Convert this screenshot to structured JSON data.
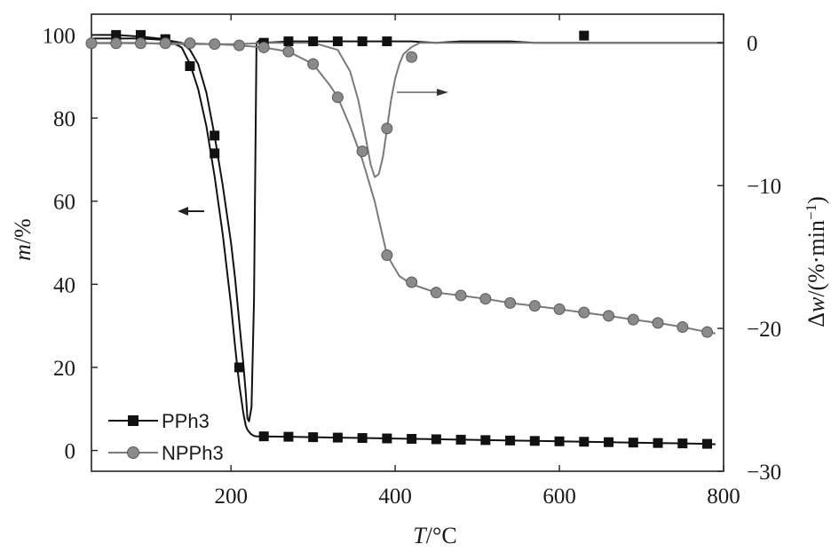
{
  "chart_data": {
    "type": "line",
    "x_axis": {
      "label": "T/°C",
      "range": [
        30,
        800
      ],
      "ticks": [
        200,
        400,
        600,
        800
      ]
    },
    "y_left": {
      "label": "m/%",
      "range": [
        -5,
        105
      ],
      "ticks": [
        0,
        20,
        40,
        60,
        80,
        100
      ]
    },
    "y_right": {
      "label": "Δw/(%·min⁻¹)",
      "range": [
        -30,
        2
      ],
      "ticks": [
        0,
        -10,
        -20,
        -30
      ]
    },
    "grid": false,
    "legend": {
      "placement": "bottom-left",
      "entries": [
        "PPh3",
        "NPPh3"
      ]
    },
    "colors": {
      "PPh3": "#111111",
      "NPPh3": "#7a7a7a",
      "NPPh3_marker": "#8a8a8a"
    },
    "annotations": [
      {
        "type": "arrow",
        "direction": "left",
        "refers_to_axis": "left"
      },
      {
        "type": "arrow",
        "direction": "right",
        "refers_to_axis": "right"
      }
    ],
    "series": [
      {
        "name": "PPh3",
        "axis": "left",
        "marker": "square",
        "x": [
          30,
          60,
          90,
          120,
          140,
          150,
          160,
          170,
          180,
          190,
          200,
          205,
          210,
          215,
          218,
          220,
          224,
          228,
          232,
          240,
          270,
          300,
          330,
          360,
          390,
          420,
          450,
          480,
          510,
          540,
          570,
          600,
          630,
          660,
          690,
          720,
          750,
          780,
          790
        ],
        "y": [
          100,
          100,
          99.6,
          99,
          97,
          93,
          87,
          78,
          66,
          52,
          35,
          25,
          16,
          9,
          6,
          5,
          4,
          3.5,
          3.4,
          3.4,
          3.3,
          3.2,
          3.1,
          3.0,
          2.9,
          2.8,
          2.7,
          2.6,
          2.5,
          2.4,
          2.3,
          2.2,
          2.1,
          2.0,
          1.9,
          1.8,
          1.7,
          1.6,
          1.5
        ],
        "marker_x": [
          60,
          90,
          120,
          150,
          180,
          210,
          240,
          270,
          300,
          330,
          360,
          390,
          420,
          450,
          480,
          510,
          540,
          570,
          600,
          630,
          660,
          690,
          720,
          750,
          780
        ],
        "marker_y": [
          100,
          100,
          99,
          92.5,
          71.5,
          20,
          3.4,
          3.3,
          3.2,
          3.1,
          3.0,
          2.9,
          2.8,
          2.7,
          2.6,
          2.5,
          2.4,
          2.3,
          2.2,
          2.1,
          2.0,
          1.9,
          1.8,
          1.7,
          1.6
        ]
      },
      {
        "name": "PPh3",
        "axis": "right",
        "marker": "square",
        "x": [
          30,
          60,
          90,
          120,
          140,
          150,
          160,
          170,
          180,
          190,
          200,
          205,
          210,
          215,
          218,
          220,
          222,
          225,
          228,
          231,
          235,
          240,
          270,
          300,
          330,
          360,
          390,
          420,
          450,
          480,
          510,
          540,
          570,
          600,
          630,
          660,
          690,
          720,
          750,
          780,
          800
        ],
        "y": [
          0.3,
          0.3,
          0.3,
          0.2,
          0,
          -0.5,
          -1.5,
          -3.5,
          -6.5,
          -10,
          -14,
          -16.5,
          -19.5,
          -22.5,
          -24.5,
          -26.3,
          -26.5,
          -25.5,
          -18,
          0,
          0.2,
          0,
          0.1,
          0.1,
          0.1,
          0.1,
          0.1,
          0.1,
          0,
          0.1,
          0.1,
          0.1,
          0,
          0,
          0,
          0,
          0,
          0,
          0,
          0,
          0
        ],
        "marker_x": [
          60,
          90,
          120,
          180,
          240,
          270,
          300,
          330,
          360,
          390,
          630
        ],
        "marker_y": [
          0.3,
          0.3,
          0.2,
          -6.5,
          0,
          0.1,
          0.1,
          0.1,
          0.1,
          0.1,
          0.5
        ]
      },
      {
        "name": "NPPh3",
        "axis": "left",
        "marker": "circle",
        "x": [
          30,
          60,
          90,
          120,
          150,
          180,
          210,
          240,
          270,
          300,
          320,
          330,
          345,
          360,
          375,
          390,
          405,
          420,
          435,
          450,
          480,
          510,
          540,
          570,
          600,
          630,
          660,
          690,
          720,
          750,
          780,
          790
        ],
        "y": [
          98,
          98,
          98,
          98,
          98,
          97.8,
          97.5,
          97,
          96,
          93,
          88,
          85,
          78,
          70,
          60,
          47,
          42,
          40,
          39,
          38,
          37.3,
          36.5,
          35.5,
          34.8,
          34,
          33.2,
          32.4,
          31.5,
          30.7,
          29.7,
          28.5,
          28.2
        ],
        "marker_x": [
          30,
          60,
          90,
          120,
          150,
          180,
          210,
          240,
          270,
          300,
          330,
          360,
          390,
          420,
          450,
          480,
          510,
          540,
          570,
          600,
          630,
          660,
          690,
          720,
          750,
          780
        ],
        "marker_y": [
          98,
          98,
          98,
          98,
          98,
          97.8,
          97.5,
          97,
          96,
          93,
          85,
          72,
          47,
          40.5,
          38,
          37.3,
          36.5,
          35.5,
          34.8,
          34,
          33.2,
          32.4,
          31.5,
          30.7,
          29.7,
          28.5
        ]
      },
      {
        "name": "NPPh3",
        "axis": "right",
        "marker": "circle",
        "x": [
          30,
          60,
          90,
          120,
          150,
          180,
          210,
          240,
          270,
          300,
          330,
          345,
          355,
          362,
          370,
          375,
          380,
          385,
          390,
          395,
          400,
          405,
          410,
          420,
          430,
          440,
          450,
          480,
          510,
          540,
          570,
          600,
          630,
          660,
          690,
          720,
          750,
          780,
          800
        ],
        "y": [
          0,
          0,
          0,
          -0.1,
          -0.1,
          -0.1,
          -0.1,
          0,
          0,
          0,
          -0.5,
          -2,
          -4,
          -6,
          -8.5,
          -9.4,
          -9.2,
          -8,
          -6,
          -4,
          -2.5,
          -1.5,
          -0.8,
          -0.3,
          0,
          0,
          0,
          0,
          0,
          0,
          0,
          0,
          0,
          0,
          0,
          0,
          0,
          0,
          0
        ],
        "marker_x": [
          390,
          420
        ],
        "marker_y": [
          -6,
          -1
        ]
      }
    ]
  }
}
